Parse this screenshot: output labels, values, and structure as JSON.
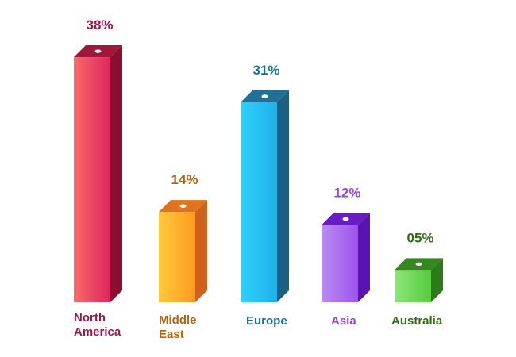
{
  "chart_data": {
    "type": "bar",
    "style": "3d-box",
    "title": "",
    "xlabel": "",
    "ylabel": "",
    "ylim": [
      0,
      40
    ],
    "grid": false,
    "legend": "none",
    "categories": [
      "North America",
      "Middle East",
      "Europe",
      "Asia",
      "Australia"
    ],
    "values": [
      38,
      14,
      31,
      12,
      5
    ],
    "data_labels": [
      "38%",
      "14%",
      "31%",
      "12%",
      "05%"
    ],
    "colors": [
      {
        "front_start": "#f96a6a",
        "front_end": "#e0245e",
        "side": "#8c0f33",
        "top": "#9e1839",
        "label": "#a0164a"
      },
      {
        "front_start": "#ffc93c",
        "front_end": "#ff9a1f",
        "side": "#d1601a",
        "top": "#e0731d",
        "label": "#b8640a"
      },
      {
        "front_start": "#2fd0fb",
        "front_end": "#1fb1ea",
        "side": "#1a5f84",
        "top": "#236f96",
        "label": "#1b6f96"
      },
      {
        "front_start": "#b98cf3",
        "front_end": "#9f53ee",
        "side": "#5b12b3",
        "top": "#6a1cc4",
        "label": "#9a3fe0"
      },
      {
        "front_start": "#8fe57a",
        "front_end": "#55cc3d",
        "side": "#2c7a18",
        "top": "#34881e",
        "label": "#2f6a16"
      }
    ]
  }
}
